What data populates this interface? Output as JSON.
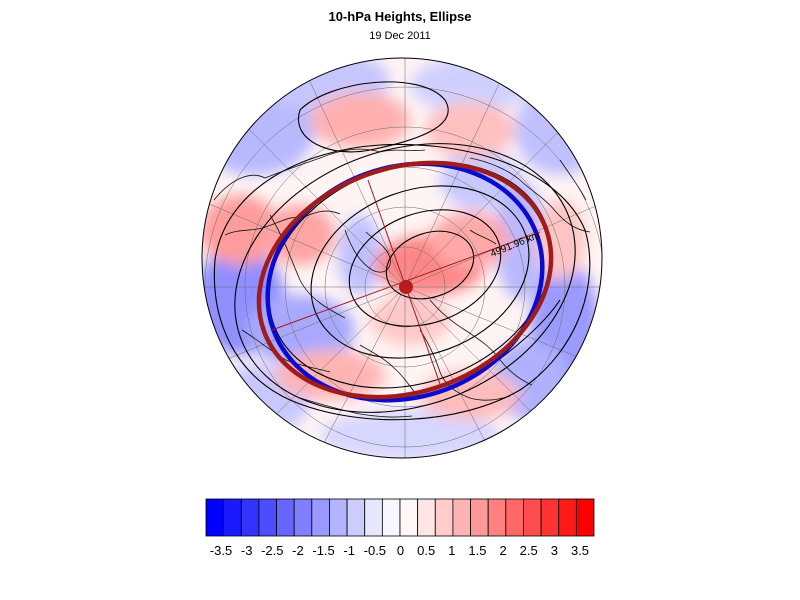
{
  "title": "10-hPa Heights, Ellipse",
  "subtitle": "19 Dec 2011",
  "annotation": "4991.96 km",
  "colorbar": {
    "labels": [
      "-3.5",
      "-3",
      "-2.5",
      "-2",
      "-1.5",
      "-1",
      "-0.5",
      "0",
      "0.5",
      "1",
      "1.5",
      "2",
      "2.5",
      "3",
      "3.5"
    ],
    "colors": [
      "#0000ff",
      "#1a1aff",
      "#3333ff",
      "#4d4dff",
      "#6666ff",
      "#8080ff",
      "#9999ff",
      "#b3b3ff",
      "#ccccff",
      "#e6e6ff",
      "#f7f7ff",
      "#fff7f7",
      "#ffe6e6",
      "#ffcccc",
      "#ffb3b3",
      "#ff9999",
      "#ff8080",
      "#ff6666",
      "#ff4d4d",
      "#ff3333",
      "#ff1a1a",
      "#ff0000"
    ]
  },
  "colors": {
    "ellipse_blue": "#0a0ad0",
    "ellipse_red": "#a01c1c",
    "center_dot": "#b81c1c",
    "contour": "#000000"
  }
}
